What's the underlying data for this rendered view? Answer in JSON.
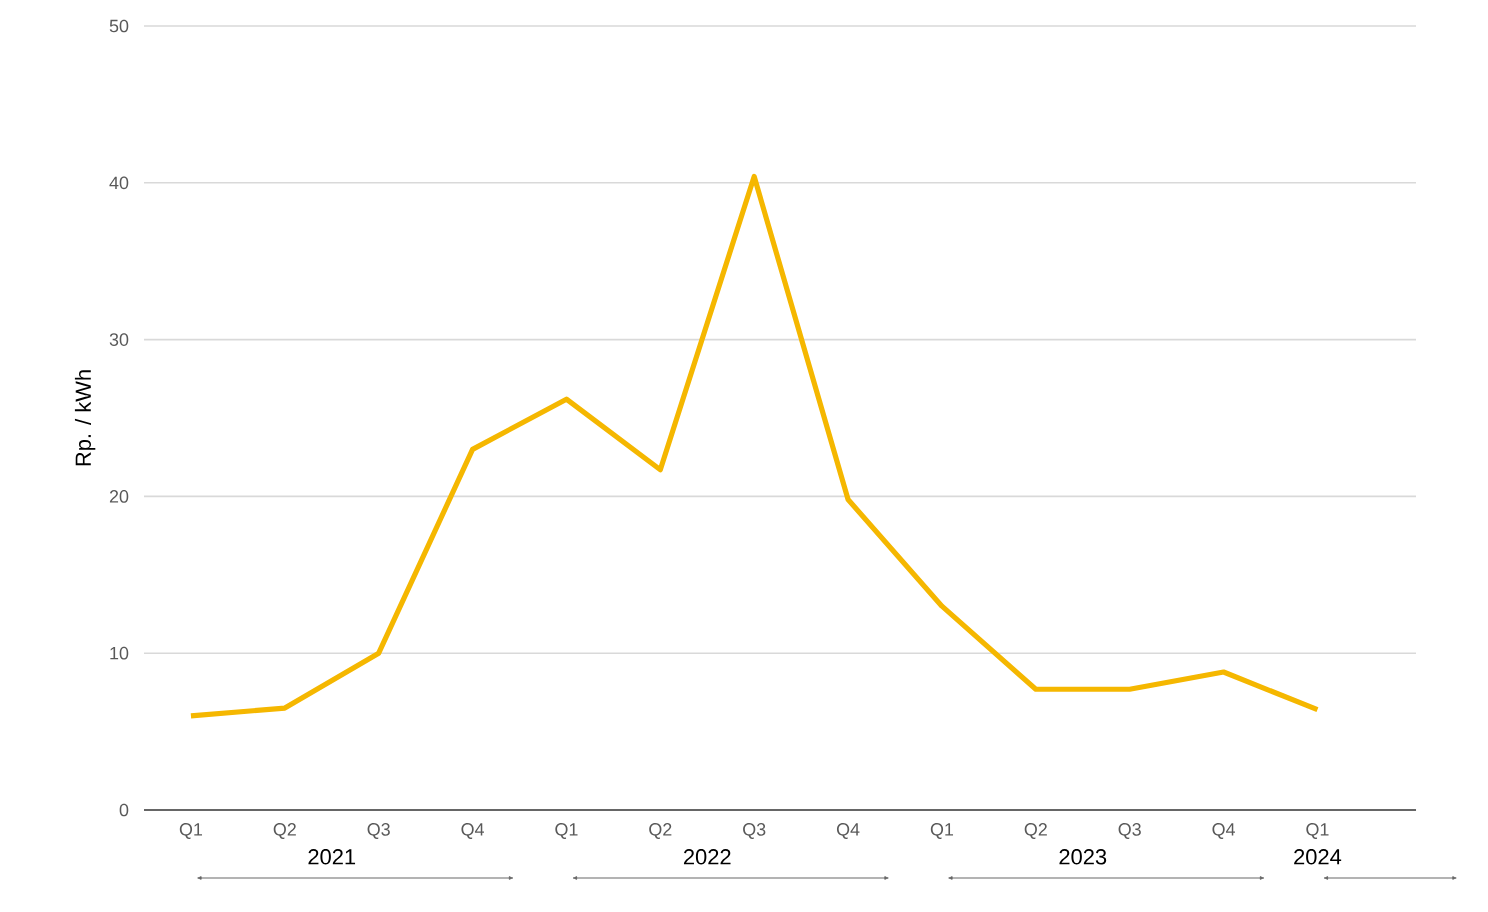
{
  "chart_data": {
    "type": "line",
    "ylabel": "Rp. / kWh",
    "categories": [
      "Q1",
      "Q2",
      "Q3",
      "Q4",
      "Q1",
      "Q2",
      "Q3",
      "Q4",
      "Q1",
      "Q2",
      "Q3",
      "Q4",
      "Q1"
    ],
    "series": [
      {
        "color": "#f5b700",
        "values": [
          6.0,
          6.5,
          10.0,
          23.0,
          26.2,
          21.7,
          40.4,
          19.8,
          13.0,
          7.7,
          7.7,
          8.8,
          6.4
        ]
      }
    ],
    "ylim": [
      0,
      50
    ],
    "yticks": [
      0,
      10,
      20,
      30,
      40,
      50
    ],
    "grid": "y",
    "marker": "none",
    "line_style": "solid",
    "annotations": [
      "2021",
      "2022",
      "2023",
      "2024"
    ]
  }
}
